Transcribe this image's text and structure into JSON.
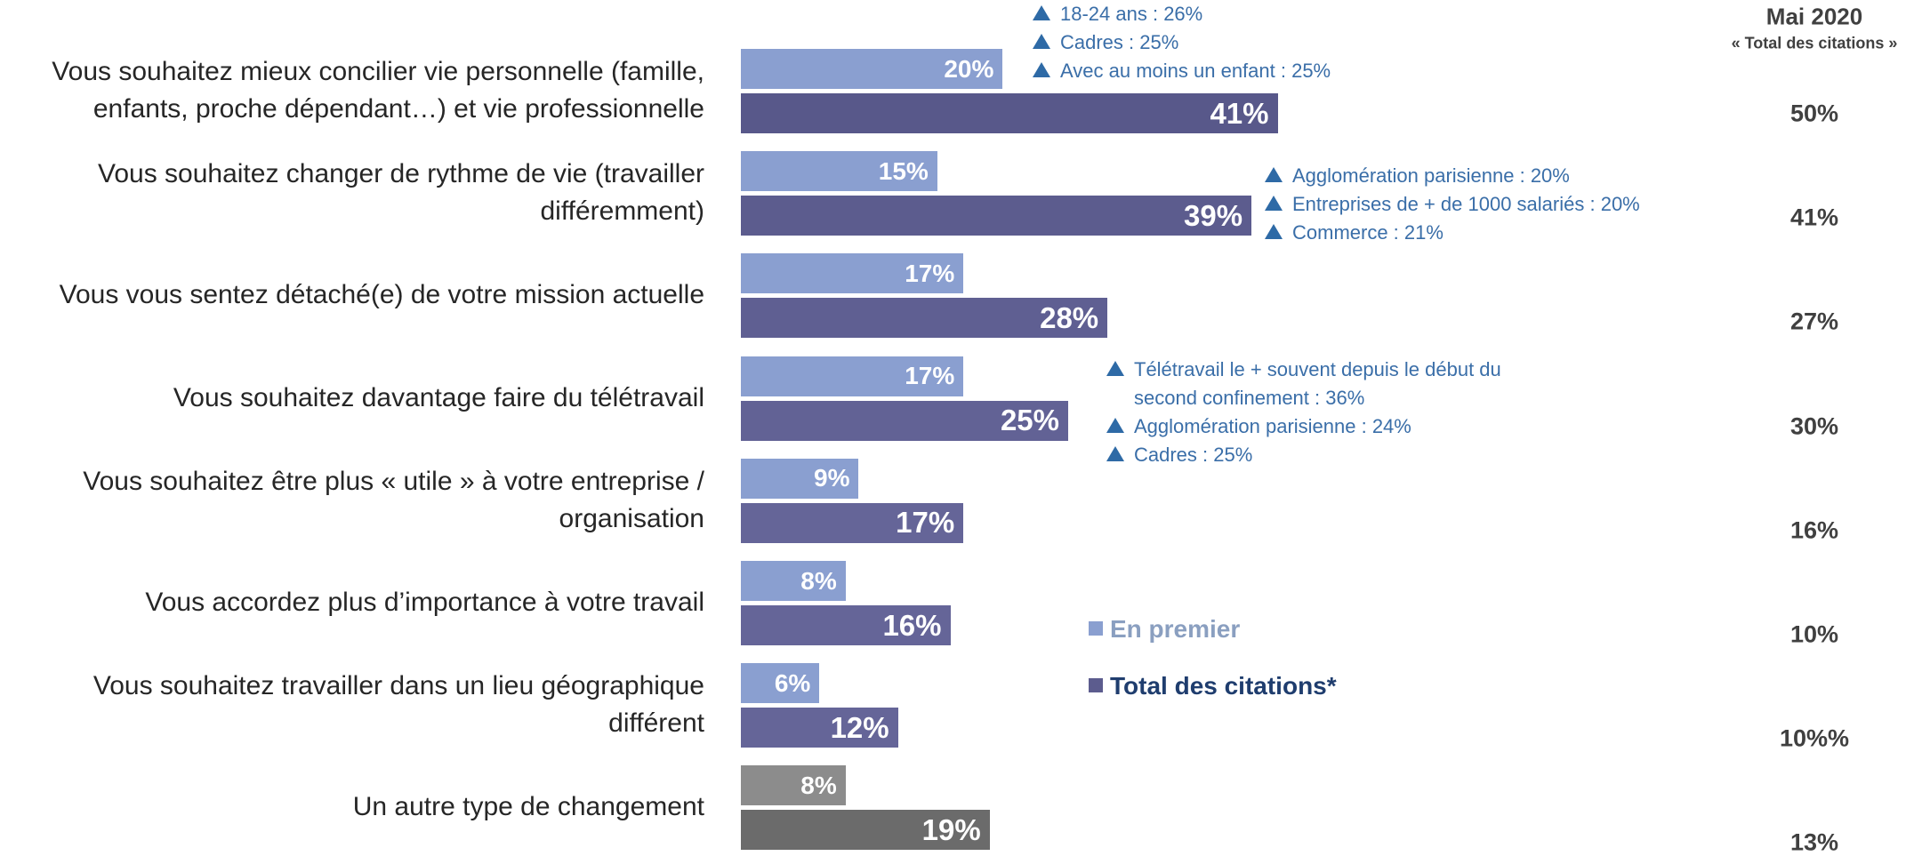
{
  "chart_data": {
    "type": "hbar-pairs",
    "categories": [
      "Vous souhaitez mieux concilier vie personnelle (famille, enfants, proche dépendant…) et vie professionnelle",
      "Vous souhaitez changer de rythme de vie (travailler différemment)",
      "Vous vous sentez détaché(e) de votre mission actuelle",
      "Vous souhaitez davantage faire du télétravail",
      "Vous souhaitez être plus « utile » à votre entreprise / organisation",
      "Vous accordez plus d’importance à votre travail",
      "Vous souhaitez travailler dans un lieu géographique différent",
      "Un autre type de changement"
    ],
    "series": [
      {
        "name": "En premier",
        "color": "#8a9fd0",
        "colors": [
          "#8a9fd0",
          "#8a9fd0",
          "#8a9fd0",
          "#8a9fd0",
          "#8a9fd0",
          "#8a9fd0",
          "#8a9fd0",
          "#8c8c8c"
        ],
        "values": [
          20,
          15,
          17,
          17,
          9,
          8,
          6,
          8
        ],
        "value_labels": [
          "20%",
          "15%",
          "17%",
          "17%",
          "9%",
          "8%",
          "6%",
          "8%"
        ]
      },
      {
        "name": "Total des citations*",
        "color": "#5c5c8e",
        "colors": [
          "#58588a",
          "#5c5c8e",
          "#5f5f92",
          "#626295",
          "#656598",
          "#656598",
          "#656598",
          "#6b6b6b"
        ],
        "values": [
          41,
          39,
          28,
          25,
          17,
          16,
          12,
          19
        ],
        "value_labels": [
          "41%",
          "39%",
          "28%",
          "25%",
          "17%",
          "16%",
          "12%",
          "19%"
        ]
      }
    ],
    "annotations": [
      [
        "18-24 ans : 26%",
        "Cadres : 25%",
        "Avec au moins un enfant : 25%"
      ],
      [
        "Agglomération parisienne : 20%",
        "Entreprises de + de 1000 salariés : 20%",
        "Commerce : 21%"
      ],
      [
        "Télétravail le + souvent depuis le début du second confinement : 36%",
        "Agglomération parisienne : 24%",
        "Cadres : 25%"
      ]
    ],
    "comparison": {
      "title": "Mai 2020",
      "subtitle": "« Total des citations »",
      "labels": [
        "50%",
        "41%",
        "27%",
        "30%",
        "16%",
        "10%",
        "10%%",
        "13%"
      ]
    }
  }
}
